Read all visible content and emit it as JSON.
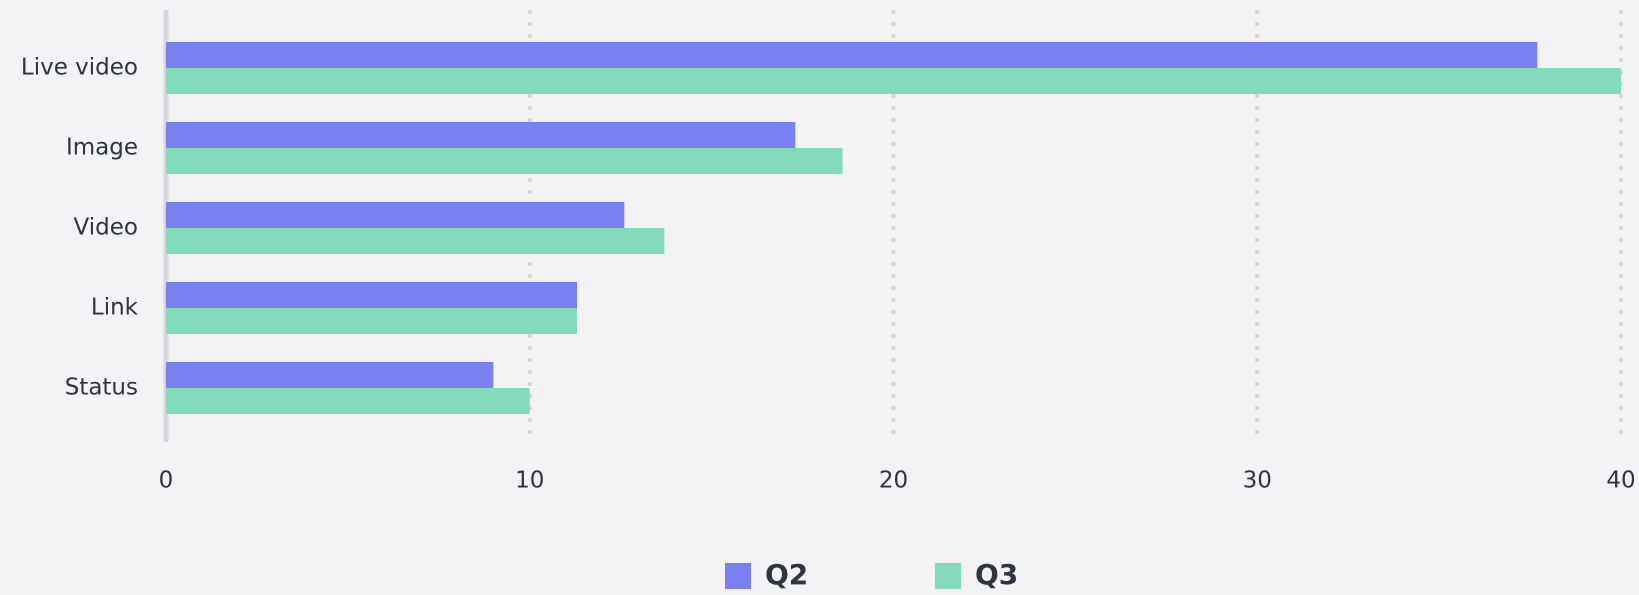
{
  "chart_data": {
    "type": "hbar",
    "categories": [
      "Live video",
      "Image",
      "Video",
      "Link",
      "Status"
    ],
    "series": [
      {
        "name": "Q2",
        "color": "#7b80f0",
        "values": [
          37.7,
          17.3,
          12.6,
          11.3,
          9.0
        ]
      },
      {
        "name": "Q3",
        "color": "#84dbbb",
        "values": [
          40,
          18.6,
          13.7,
          11.3,
          10.0
        ]
      }
    ],
    "xlim": [
      0,
      40
    ],
    "xticks": [
      0,
      10,
      20,
      30,
      40
    ],
    "grid": true,
    "legend": "bottom"
  }
}
